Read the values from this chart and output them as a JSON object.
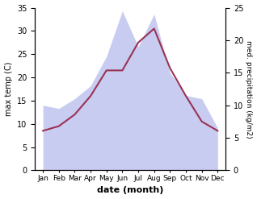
{
  "months": [
    "Jan",
    "Feb",
    "Mar",
    "Apr",
    "May",
    "Jun",
    "Jul",
    "Aug",
    "Sep",
    "Oct",
    "Nov",
    "Dec"
  ],
  "month_x": [
    0,
    1,
    2,
    3,
    4,
    5,
    6,
    7,
    8,
    9,
    10,
    11
  ],
  "temperature": [
    8.5,
    9.5,
    12.0,
    16.0,
    21.5,
    21.5,
    27.5,
    30.5,
    22.0,
    16.0,
    10.5,
    8.5
  ],
  "precipitation": [
    10.0,
    9.5,
    11.0,
    13.0,
    17.5,
    24.5,
    19.0,
    24.0,
    15.0,
    11.5,
    11.0,
    6.5
  ],
  "temp_color": "#993355",
  "precip_fill_color": "#c8ccf0",
  "temp_ylim": [
    0,
    35
  ],
  "precip_ylim": [
    0,
    25
  ],
  "temp_yticks": [
    0,
    5,
    10,
    15,
    20,
    25,
    30,
    35
  ],
  "precip_yticks": [
    0,
    5,
    10,
    15,
    20,
    25
  ],
  "xlabel": "date (month)",
  "ylabel_left": "max temp (C)",
  "ylabel_right": "med. precipitation (kg/m2)",
  "bg_color": "#ffffff"
}
